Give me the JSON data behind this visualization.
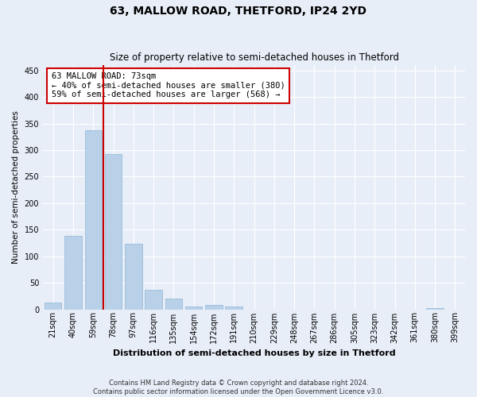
{
  "title": "63, MALLOW ROAD, THETFORD, IP24 2YD",
  "subtitle": "Size of property relative to semi-detached houses in Thetford",
  "xlabel": "Distribution of semi-detached houses by size in Thetford",
  "ylabel": "Number of semi-detached properties",
  "categories": [
    "21sqm",
    "40sqm",
    "59sqm",
    "78sqm",
    "97sqm",
    "116sqm",
    "135sqm",
    "154sqm",
    "172sqm",
    "191sqm",
    "210sqm",
    "229sqm",
    "248sqm",
    "267sqm",
    "286sqm",
    "305sqm",
    "323sqm",
    "342sqm",
    "361sqm",
    "380sqm",
    "399sqm"
  ],
  "values": [
    12,
    138,
    337,
    293,
    124,
    36,
    20,
    5,
    8,
    6,
    0,
    0,
    0,
    0,
    0,
    0,
    0,
    0,
    0,
    3,
    0
  ],
  "bar_color": "#b8d0e8",
  "bar_edge_color": "#90b8d8",
  "vline_color": "#cc0000",
  "annotation_text": "63 MALLOW ROAD: 73sqm\n← 40% of semi-detached houses are smaller (380)\n59% of semi-detached houses are larger (568) →",
  "annotation_box_color": "#ffffff",
  "annotation_box_edge": "#cc0000",
  "ylim": [
    0,
    460
  ],
  "yticks": [
    0,
    50,
    100,
    150,
    200,
    250,
    300,
    350,
    400,
    450
  ],
  "footer_text": "Contains HM Land Registry data © Crown copyright and database right 2024.\nContains public sector information licensed under the Open Government Licence v3.0.",
  "background_color": "#e8eef8",
  "grid_color": "#ffffff"
}
